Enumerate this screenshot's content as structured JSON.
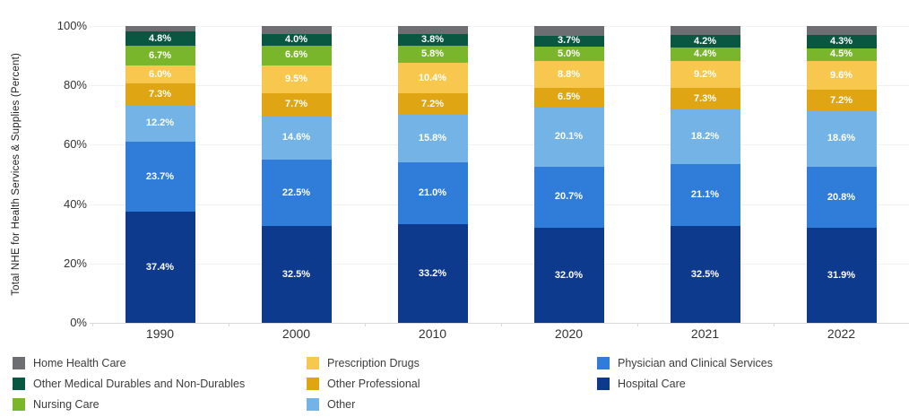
{
  "chart_data": {
    "type": "bar",
    "subtype": "stacked-100-percent",
    "title": "",
    "xlabel": "",
    "ylabel": "Total NHE for Health Services & Supplies (Percent)",
    "ylim": [
      0,
      100
    ],
    "y_ticks": [
      0,
      20,
      40,
      60,
      80,
      100
    ],
    "y_tick_suffix": "%",
    "grid": "faint-horizontal",
    "legend_position": "bottom",
    "categories": [
      "1990",
      "2000",
      "2010",
      "2020",
      "2021",
      "2022"
    ],
    "series": [
      {
        "name": "Hospital Care",
        "color": "#0e3a8e",
        "values": [
          37.4,
          32.5,
          33.2,
          32.0,
          32.5,
          31.9
        ],
        "show_labels": true
      },
      {
        "name": "Physician and Clinical Services",
        "color": "#2f7dd9",
        "values": [
          23.7,
          22.5,
          21.0,
          20.7,
          21.1,
          20.8
        ],
        "show_labels": true
      },
      {
        "name": "Other",
        "color": "#73b3e5",
        "values": [
          12.2,
          14.6,
          15.8,
          20.1,
          18.2,
          18.6
        ],
        "show_labels": true
      },
      {
        "name": "Other Professional",
        "color": "#dfa513",
        "values": [
          7.3,
          7.7,
          7.2,
          6.5,
          7.3,
          7.2
        ],
        "show_labels": true
      },
      {
        "name": "Prescription Drugs",
        "color": "#f8c84e",
        "values": [
          6.0,
          9.5,
          10.4,
          8.8,
          9.2,
          9.6
        ],
        "show_labels": true
      },
      {
        "name": "Nursing Care",
        "color": "#7ab62b",
        "values": [
          6.7,
          6.6,
          5.8,
          5.0,
          4.4,
          4.5
        ],
        "show_labels": true
      },
      {
        "name": "Other Medical Durables and Non-Durables",
        "color": "#0a5741",
        "values": [
          4.8,
          4.0,
          3.8,
          3.7,
          4.2,
          4.3
        ],
        "show_labels": true
      },
      {
        "name": "Home Health Care",
        "color": "#6d6e71",
        "values": [
          1.9,
          2.6,
          2.8,
          3.2,
          3.1,
          3.1
        ],
        "show_labels": false
      }
    ],
    "legend_columns": [
      [
        {
          "label": "Home Health Care",
          "color": "#6d6e71"
        },
        {
          "label": "Other Medical Durables and Non-Durables",
          "color": "#0a5741"
        },
        {
          "label": "Nursing Care",
          "color": "#7ab62b"
        }
      ],
      [
        {
          "label": "Prescription Drugs",
          "color": "#f8c84e"
        },
        {
          "label": "Other Professional",
          "color": "#dfa513"
        },
        {
          "label": "Other",
          "color": "#73b3e5"
        }
      ],
      [
        {
          "label": "Physician and Clinical Services",
          "color": "#2f7dd9"
        },
        {
          "label": "Hospital Care",
          "color": "#0e3a8e"
        }
      ]
    ]
  }
}
